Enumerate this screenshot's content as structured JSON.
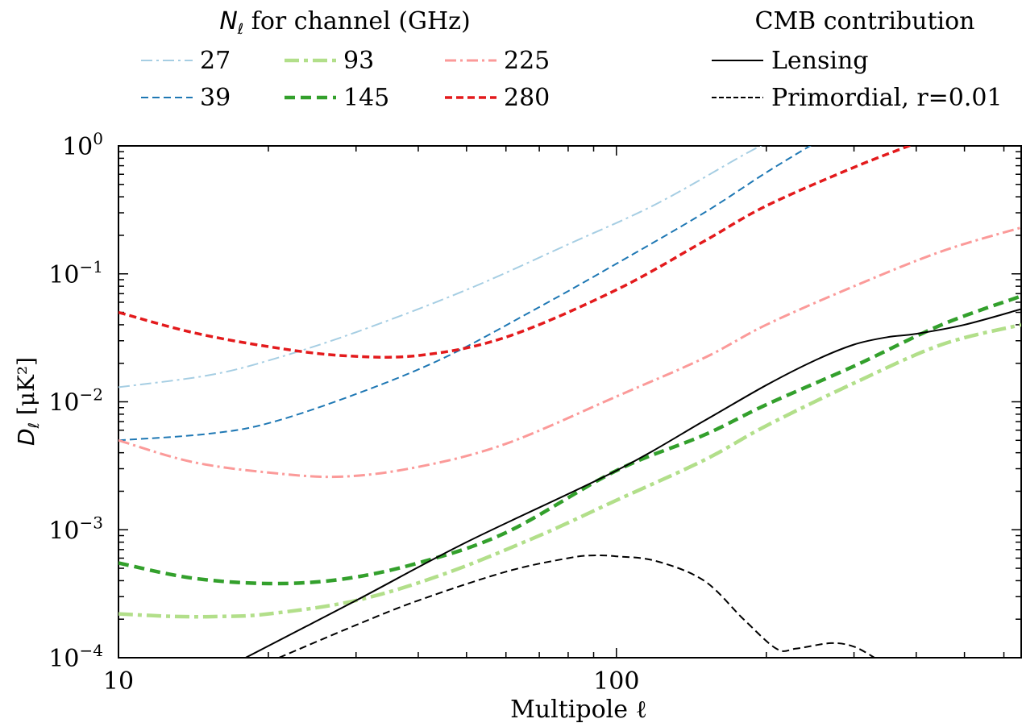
{
  "chart_data": {
    "type": "line",
    "x_scale": "log",
    "y_scale": "log",
    "xlim": [
      10,
      650
    ],
    "ylim": [
      0.0001,
      1
    ],
    "xlabel": "Multipole ℓ",
    "ylabel_main": "D",
    "ylabel_sub": "ℓ",
    "ylabel_unit": "[μK²]",
    "x_ticks": [
      {
        "value": 10,
        "label": "10"
      },
      {
        "value": 100,
        "label": "100"
      }
    ],
    "y_ticks": [
      {
        "value": 0.0001,
        "base": "10",
        "exp": "−4"
      },
      {
        "value": 0.001,
        "base": "10",
        "exp": "−3"
      },
      {
        "value": 0.01,
        "base": "10",
        "exp": "−2"
      },
      {
        "value": 0.1,
        "base": "10",
        "exp": "−1"
      },
      {
        "value": 1,
        "base": "10",
        "exp": "0"
      }
    ],
    "grid": false,
    "legend_noise": {
      "title_main": "N",
      "title_sub": "ℓ",
      "title_rest": " for channel (GHz)",
      "placement": "top-left"
    },
    "legend_cmb": {
      "title": "CMB contribution",
      "placement": "top-right"
    },
    "noise_series": [
      {
        "name": "27",
        "color": "#a6cee3",
        "dash": "dashdot",
        "width": 2,
        "points": [
          [
            10,
            0.013
          ],
          [
            15,
            0.016
          ],
          [
            20,
            0.021
          ],
          [
            30,
            0.035
          ],
          [
            50,
            0.075
          ],
          [
            80,
            0.17
          ],
          [
            120,
            0.35
          ],
          [
            180,
            0.85
          ],
          [
            200,
            1.05
          ]
        ]
      },
      {
        "name": "39",
        "color": "#1f78b4",
        "dash": "dashed",
        "width": 2,
        "points": [
          [
            10,
            0.005
          ],
          [
            15,
            0.0056
          ],
          [
            20,
            0.0068
          ],
          [
            30,
            0.0115
          ],
          [
            45,
            0.022
          ],
          [
            70,
            0.055
          ],
          [
            100,
            0.12
          ],
          [
            150,
            0.3
          ],
          [
            200,
            0.62
          ],
          [
            250,
            1.05
          ]
        ]
      },
      {
        "name": "93",
        "color": "#b2df8a",
        "dash": "dashdot",
        "width": 4.5,
        "points": [
          [
            10,
            0.00022
          ],
          [
            13,
            0.00021
          ],
          [
            16,
            0.00021
          ],
          [
            20,
            0.00022
          ],
          [
            30,
            0.00028
          ],
          [
            45,
            0.00045
          ],
          [
            70,
            0.0009
          ],
          [
            100,
            0.0017
          ],
          [
            150,
            0.0035
          ],
          [
            200,
            0.0065
          ],
          [
            300,
            0.014
          ],
          [
            450,
            0.028
          ],
          [
            650,
            0.04
          ]
        ]
      },
      {
        "name": "145",
        "color": "#33a02c",
        "dash": "dashed",
        "width": 4.5,
        "points": [
          [
            10,
            0.00055
          ],
          [
            14,
            0.00042
          ],
          [
            20,
            0.00038
          ],
          [
            28,
            0.00041
          ],
          [
            40,
            0.00055
          ],
          [
            60,
            0.00095
          ],
          [
            100,
            0.0029
          ],
          [
            150,
            0.0055
          ],
          [
            200,
            0.0095
          ],
          [
            300,
            0.019
          ],
          [
            450,
            0.04
          ],
          [
            650,
            0.067
          ]
        ]
      },
      {
        "name": "225",
        "color": "#fb9a99",
        "dash": "dashdot",
        "width": 3,
        "points": [
          [
            10,
            0.005
          ],
          [
            14,
            0.0034
          ],
          [
            20,
            0.0028
          ],
          [
            28,
            0.0026
          ],
          [
            40,
            0.0031
          ],
          [
            60,
            0.0047
          ],
          [
            100,
            0.011
          ],
          [
            150,
            0.022
          ],
          [
            200,
            0.04
          ],
          [
            300,
            0.08
          ],
          [
            450,
            0.15
          ],
          [
            650,
            0.23
          ]
        ]
      },
      {
        "name": "280",
        "color": "#e31a1c",
        "dash": "dashed",
        "width": 3.5,
        "points": [
          [
            10,
            0.05
          ],
          [
            14,
            0.035
          ],
          [
            20,
            0.027
          ],
          [
            28,
            0.023
          ],
          [
            40,
            0.023
          ],
          [
            60,
            0.032
          ],
          [
            100,
            0.075
          ],
          [
            150,
            0.18
          ],
          [
            200,
            0.34
          ],
          [
            300,
            0.68
          ],
          [
            400,
            1.05
          ]
        ]
      }
    ],
    "cmb_series": [
      {
        "name": "Lensing",
        "color": "#000000",
        "dash": "solid",
        "width": 2,
        "points": [
          [
            18,
            0.0001
          ],
          [
            30,
            0.00028
          ],
          [
            50,
            0.0008
          ],
          [
            100,
            0.0029
          ],
          [
            150,
            0.0071
          ],
          [
            200,
            0.0135
          ],
          [
            250,
            0.021
          ],
          [
            300,
            0.028
          ],
          [
            350,
            0.032
          ],
          [
            400,
            0.034
          ],
          [
            500,
            0.04
          ],
          [
            650,
            0.053
          ]
        ]
      },
      {
        "name": "Primordial, r=0.01",
        "color": "#000000",
        "dash": "dashed",
        "width": 2,
        "points": [
          [
            21,
            0.0001
          ],
          [
            30,
            0.00018
          ],
          [
            40,
            0.00028
          ],
          [
            60,
            0.00047
          ],
          [
            80,
            0.0006
          ],
          [
            90,
            0.00063
          ],
          [
            100,
            0.00062
          ],
          [
            120,
            0.00057
          ],
          [
            150,
            0.0004
          ],
          [
            180,
            0.0002
          ],
          [
            210,
            0.000117
          ],
          [
            230,
            0.000118
          ],
          [
            270,
            0.00013
          ],
          [
            300,
            0.000122
          ],
          [
            330,
            0.0001
          ]
        ]
      }
    ]
  }
}
